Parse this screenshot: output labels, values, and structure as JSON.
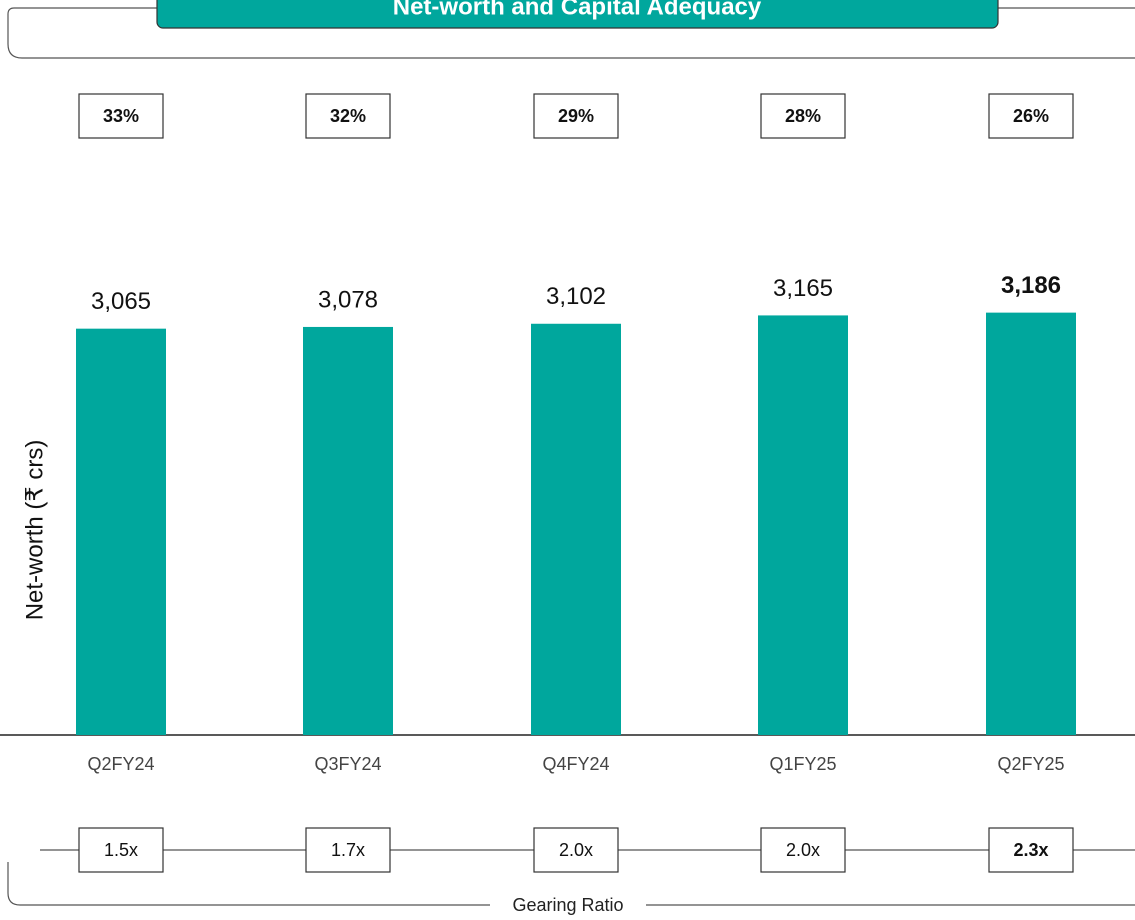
{
  "chart_data": {
    "type": "bar",
    "title": "Net-worth and Capital Adequacy",
    "y_label": "Net-worth (₹ crs)",
    "categories": [
      "Q2FY24",
      "Q3FY24",
      "Q4FY24",
      "Q1FY25",
      "Q2FY25"
    ],
    "values": [
      3065,
      3078,
      3102,
      3165,
      3186
    ],
    "value_labels": [
      "3,065",
      "3,078",
      "3,102",
      "3,165",
      "3,186"
    ],
    "color": "#00a79d",
    "ylim": [
      0,
      3500
    ],
    "capital_adequacy": {
      "values": [
        33,
        32,
        29,
        28,
        26
      ],
      "value_labels": [
        "33%",
        "32%",
        "29%",
        "28%",
        "26%"
      ]
    },
    "gearing_ratio": {
      "label": "Gearing Ratio",
      "values": [
        1.5,
        1.7,
        2.0,
        2.0,
        2.3
      ],
      "value_labels": [
        "1.5x",
        "1.7x",
        "2.0x",
        "2.0x",
        "2.3x"
      ]
    }
  }
}
